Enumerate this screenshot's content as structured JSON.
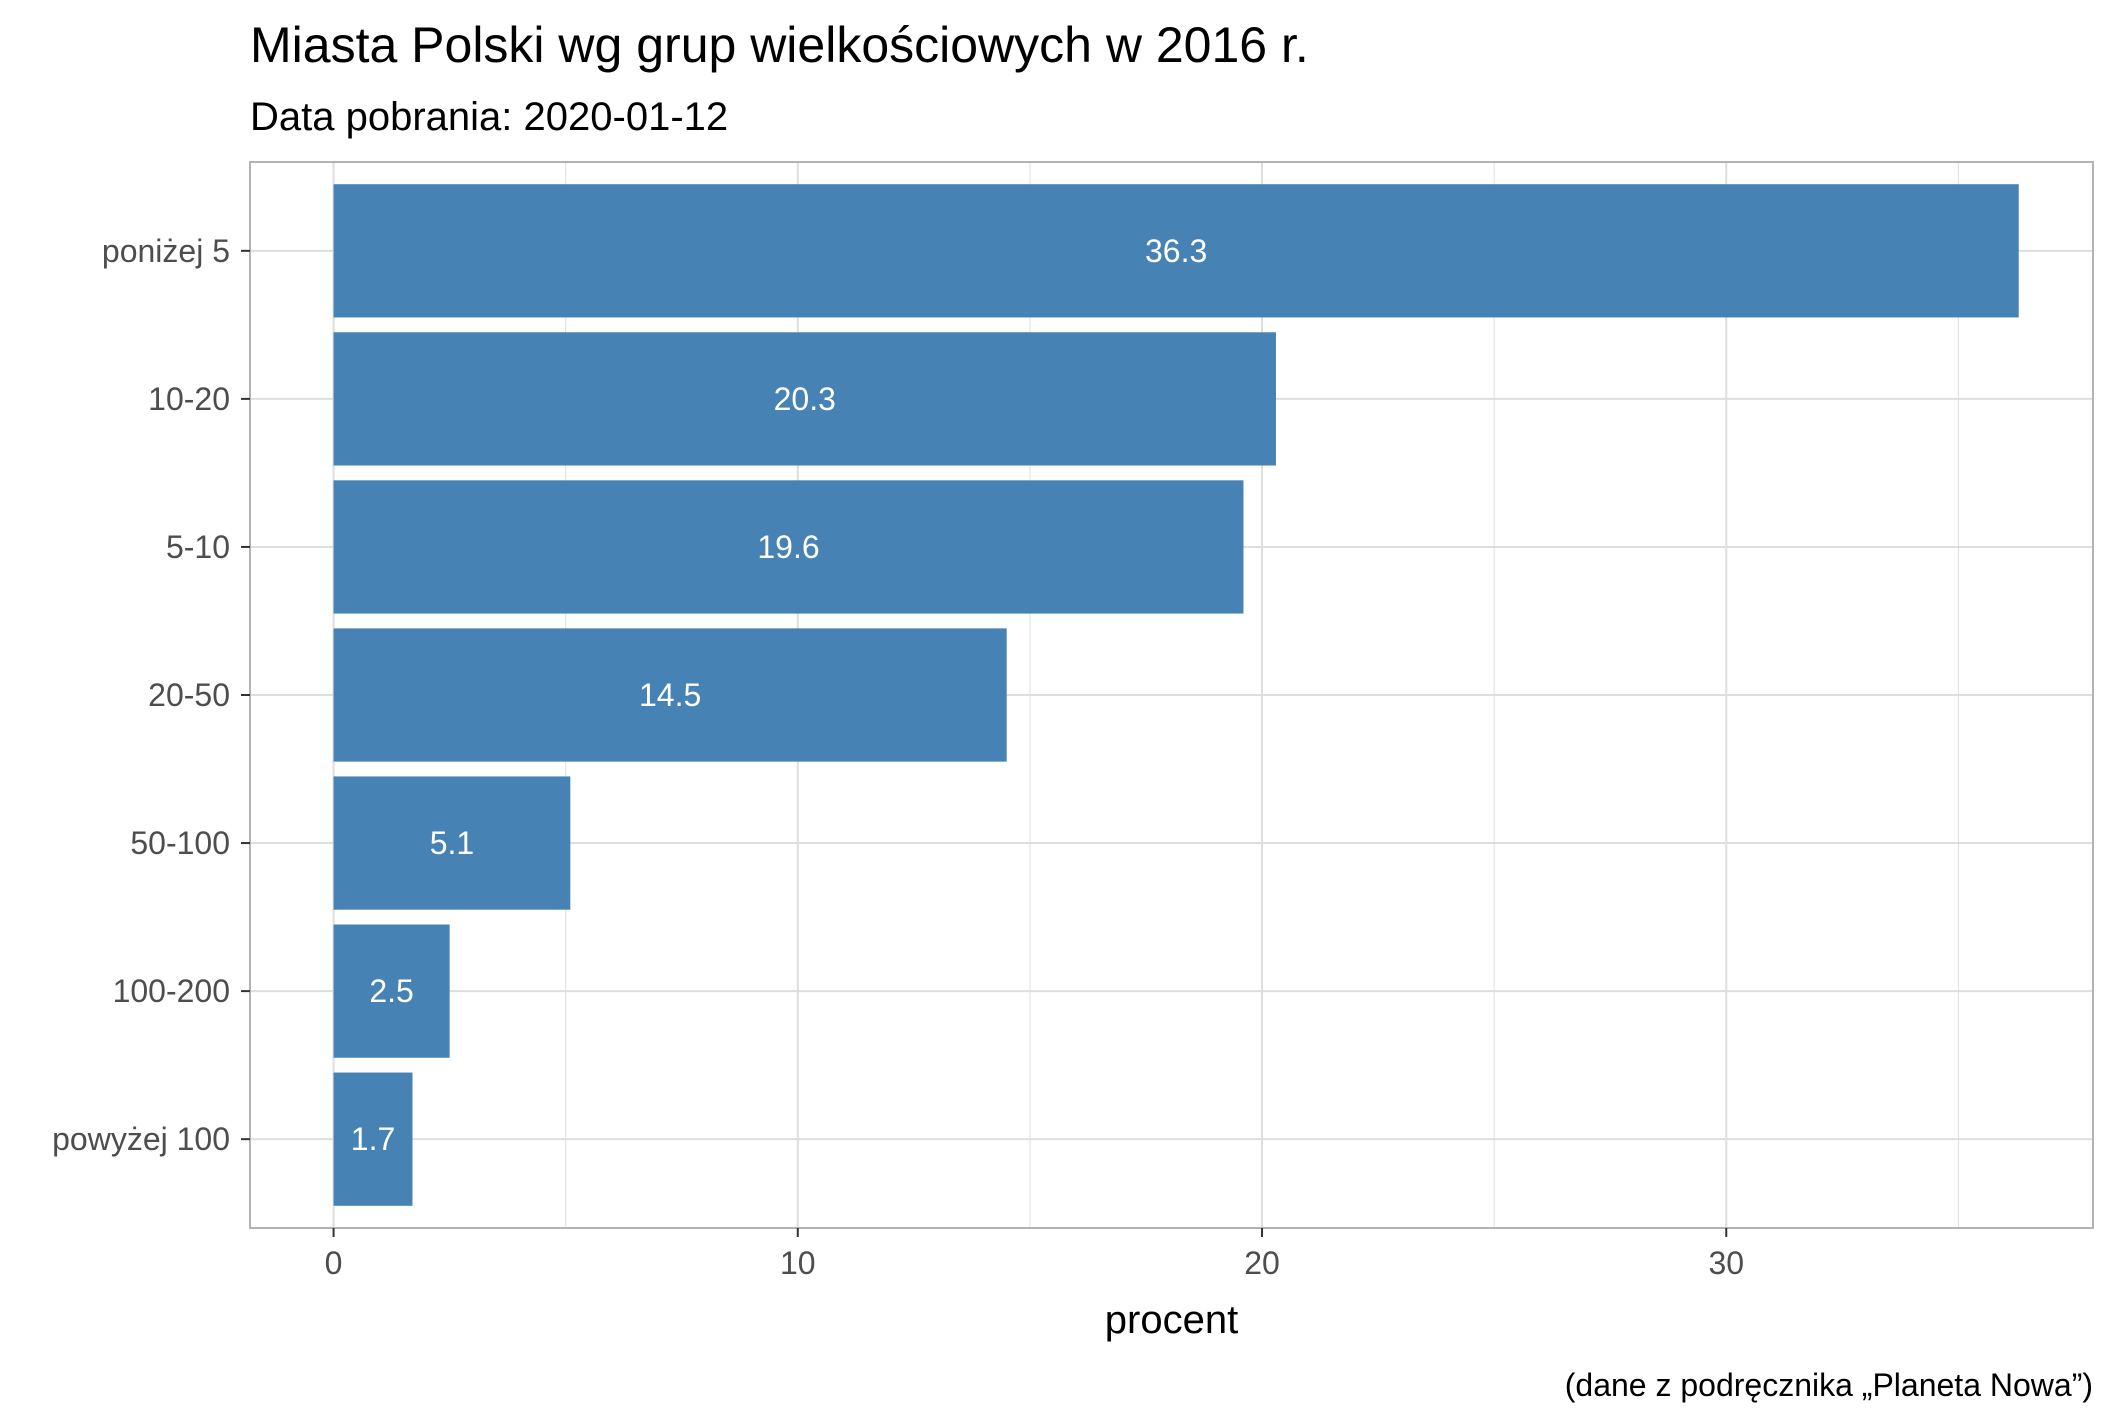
{
  "chart_data": {
    "type": "bar",
    "orientation": "horizontal",
    "title": "Miasta Polski wg grup wielkościowych w 2016 r.",
    "subtitle": "Data pobrania: 2020-01-12",
    "xlabel": "procent",
    "ylabel": "",
    "caption": "(dane z podręcznika „Planeta Nowa”)",
    "categories": [
      "poniżej 5",
      "10-20",
      "5-10",
      "20-50",
      "50-100",
      "100-200",
      "powyżej 100"
    ],
    "values": [
      36.3,
      20.3,
      19.6,
      14.5,
      5.1,
      2.5,
      1.7
    ],
    "value_labels": [
      "36.3",
      "20.3",
      "19.6",
      "14.5",
      "5.1",
      "2.5",
      "1.7"
    ],
    "xlim": [
      -1.8,
      37.9
    ],
    "x_ticks": [
      0,
      10,
      20,
      30
    ],
    "x_tick_labels": [
      "0",
      "10",
      "20",
      "30"
    ],
    "grid": true,
    "legend": "none",
    "colors": {
      "bar": "#4682b4",
      "grid": "#dedede",
      "panel_border": "#b3b3b3",
      "tick_text": "#4d4d4d",
      "label_text": "#ffffff"
    }
  }
}
